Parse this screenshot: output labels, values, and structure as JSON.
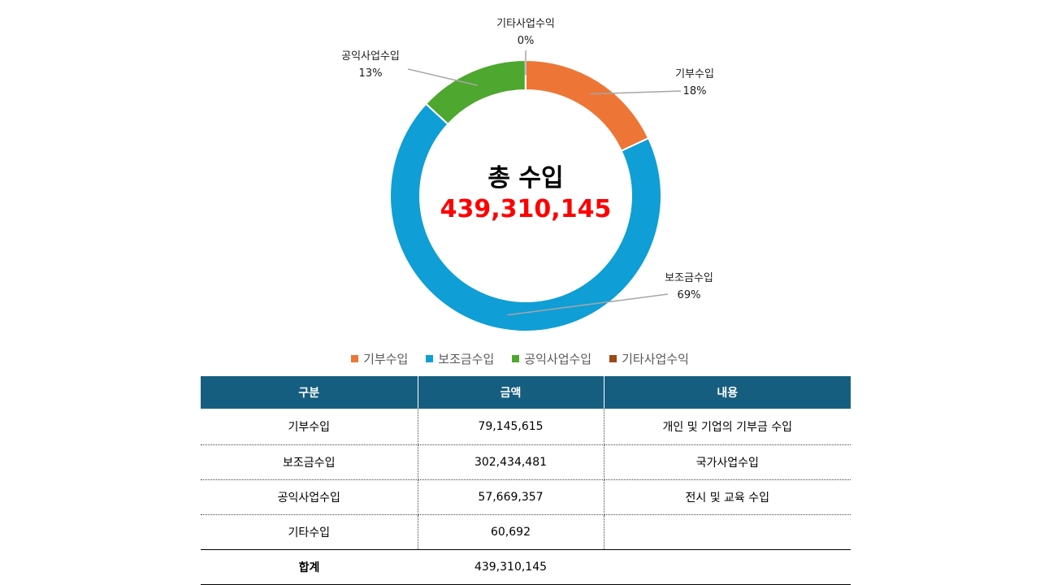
{
  "chart_data": {
    "type": "pie",
    "variant": "donut",
    "categories": [
      "기부수입",
      "보조금수입",
      "공익사업수입",
      "기타사업수익"
    ],
    "values": [
      79145615,
      302434481,
      57669357,
      60692
    ],
    "percent_labels": [
      "18%",
      "69%",
      "13%",
      "0%"
    ],
    "colors": [
      "#ed7636",
      "#0f9ed5",
      "#4ea72e",
      "#9c4a14"
    ],
    "center_title": "총 수입",
    "center_value": "439,310,145",
    "center_value_color": "#ff0000",
    "legend_position": "bottom"
  },
  "table": {
    "headers": [
      "구분",
      "금액",
      "내용"
    ],
    "rows": [
      [
        "기부수입",
        "79,145,615",
        "개인 및 기업의 기부금 수입"
      ],
      [
        "보조금수입",
        "302,434,481",
        "국가사업수입"
      ],
      [
        "공익사업수입",
        "57,669,357",
        "전시 및 교육 수입"
      ],
      [
        "기타수입",
        "60,692",
        ""
      ]
    ],
    "total": [
      "합계",
      "439,310,145",
      ""
    ],
    "header_color": "#165e80"
  }
}
